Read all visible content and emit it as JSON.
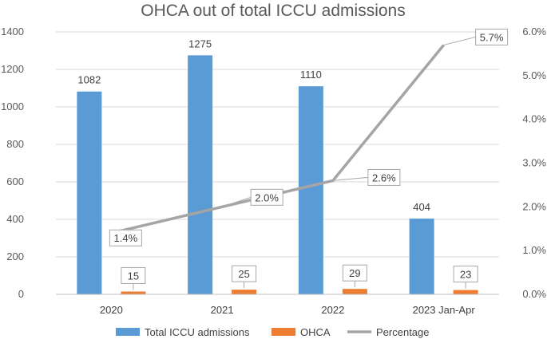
{
  "chart_data": {
    "type": "bar",
    "title": "OHCA out of total ICCU admissions",
    "categories": [
      "2020",
      "2021",
      "2022",
      "2023 Jan-Apr"
    ],
    "series": [
      {
        "name": "Total ICCU admissions",
        "kind": "bar",
        "axis": "left",
        "color": "#5b9bd5",
        "values": [
          1082,
          1275,
          1110,
          404
        ]
      },
      {
        "name": "OHCA",
        "kind": "bar",
        "axis": "left",
        "color": "#ed7d31",
        "values": [
          15,
          25,
          29,
          23
        ]
      },
      {
        "name": "Percentage",
        "kind": "line",
        "axis": "right",
        "color": "#a5a5a5",
        "values": [
          1.4,
          2.0,
          2.6,
          5.7
        ]
      }
    ],
    "data_labels": {
      "Total ICCU admissions": [
        "1082",
        "1275",
        "1110",
        "404"
      ],
      "OHCA": [
        "15",
        "25",
        "29",
        "23"
      ],
      "Percentage": [
        "1.4%",
        "2.0%",
        "2.6%",
        "5.7%"
      ]
    },
    "y_left": {
      "min": 0,
      "max": 1400,
      "step": 200,
      "tick_labels": [
        "0",
        "200",
        "400",
        "600",
        "800",
        "1000",
        "1200",
        "1400"
      ]
    },
    "y_right": {
      "min": 0,
      "max": 6,
      "step": 1,
      "tick_labels": [
        "0.0%",
        "1.0%",
        "2.0%",
        "3.0%",
        "4.0%",
        "5.0%",
        "6.0%"
      ]
    },
    "xlabel": "",
    "ylabel": "",
    "grid": true,
    "legend_position": "bottom"
  }
}
